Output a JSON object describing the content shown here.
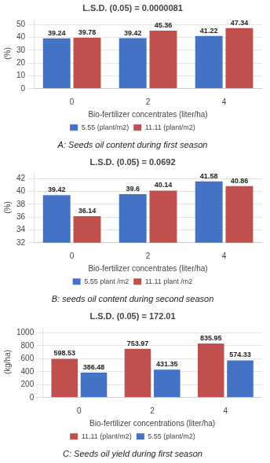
{
  "chart_data": [
    {
      "type": "bar",
      "title": "L.S.D. (0.05) = 0.0000081",
      "subtitle": "A: Seeds oil content during first season",
      "xlabel": "Bio-fertilizer concentrates (liter/ha)",
      "ylabel": "(%)",
      "categories": [
        "0",
        "2",
        "4"
      ],
      "series": [
        {
          "name": "5.55 (plant/m2)",
          "color": "#4472C4",
          "values": [
            39.24,
            39.42,
            41.22
          ]
        },
        {
          "name": "11.11 (plant/m2)",
          "color": "#C0504D",
          "values": [
            39.78,
            45.36,
            47.34
          ]
        }
      ],
      "ylim": [
        0,
        55
      ],
      "yticks": [
        0,
        10,
        20,
        30,
        40,
        50
      ],
      "grid": true,
      "data_labels": true,
      "legend": "bottom"
    },
    {
      "type": "bar",
      "title": "L.S.D. (0.05) = 0.0692",
      "subtitle": "B: seeds oil content during second season",
      "xlabel": "Bio-fertilizer concentrates (liter/ha)",
      "ylabel": "(%)",
      "categories": [
        "0",
        "2",
        "4"
      ],
      "series": [
        {
          "name": "5.55 plant /m2",
          "color": "#4472C4",
          "values": [
            39.42,
            39.6,
            41.58
          ]
        },
        {
          "name": "11.11 plant /m2",
          "color": "#C0504D",
          "values": [
            36.14,
            40.14,
            40.86
          ]
        }
      ],
      "ylim": [
        32,
        43
      ],
      "yticks": [
        32,
        34,
        36,
        38,
        40,
        42
      ],
      "grid": true,
      "data_labels": true,
      "legend": "bottom"
    },
    {
      "type": "bar",
      "title": "L.S.D. (0.05) = 172.01",
      "subtitle": "C: Seeds oil yield during first season",
      "xlabel": "Bio-fertilizer concentrations (liter/ha)",
      "ylabel": "(kg/ha)",
      "categories": [
        "0",
        "2",
        "4"
      ],
      "series": [
        {
          "name": "11.11 (plant/m2)",
          "color": "#C0504D",
          "values": [
            598.53,
            753.97,
            835.95
          ]
        },
        {
          "name": "5.55 (plant/m2)",
          "color": "#4472C4",
          "values": [
            386.48,
            431.35,
            574.33
          ]
        }
      ],
      "ylim": [
        0,
        1100
      ],
      "yticks": [
        0,
        200,
        400,
        600,
        800,
        1000
      ],
      "grid": true,
      "data_labels": true,
      "legend": "bottom"
    }
  ]
}
